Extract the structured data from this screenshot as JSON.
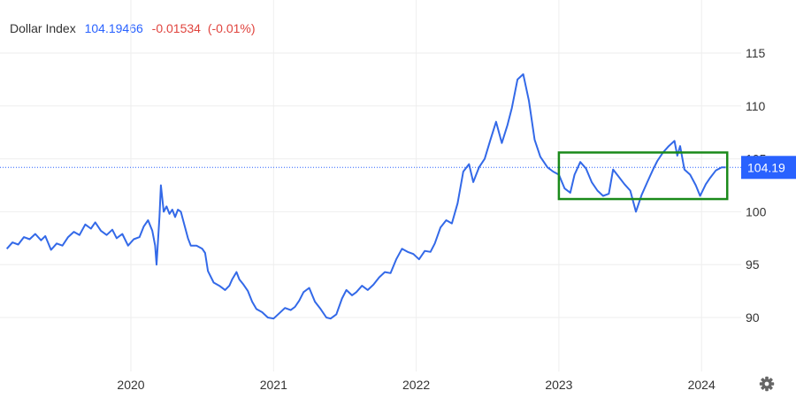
{
  "header": {
    "name": "Dollar Index",
    "price": "104.19466",
    "change": "-0.01534",
    "change_pct": "(-0.01%)"
  },
  "colors": {
    "line": "#3369e8",
    "price_tag_bg": "#2962ff",
    "price_line": "#2962ff",
    "negative": "#e0443e",
    "highlight_box": "#1a8a1a",
    "grid": "#eeeeee",
    "axis_text": "#333333"
  },
  "icons": {
    "settings": "gear-icon"
  },
  "chart_data": {
    "type": "line",
    "title": "Dollar Index",
    "xlabel": "",
    "ylabel": "",
    "x_ticks": [
      "2020",
      "2021",
      "2022",
      "2023",
      "2024"
    ],
    "y_ticks": [
      90,
      95,
      100,
      105,
      110,
      115
    ],
    "ylim": [
      84.6,
      119.7
    ],
    "xlim": [
      2019.13,
      2024.25
    ],
    "grid": true,
    "last_price_label": "104.19",
    "last_price_value": 104.19,
    "highlight_range": {
      "x": [
        2023.0,
        2024.18
      ],
      "y": [
        101.2,
        105.6
      ]
    },
    "series": [
      {
        "values": [
          [
            2019.13,
            96.5
          ],
          [
            2019.17,
            97.1
          ],
          [
            2019.21,
            96.9
          ],
          [
            2019.25,
            97.6
          ],
          [
            2019.29,
            97.4
          ],
          [
            2019.33,
            97.9
          ],
          [
            2019.37,
            97.3
          ],
          [
            2019.4,
            97.7
          ],
          [
            2019.44,
            96.4
          ],
          [
            2019.48,
            97.0
          ],
          [
            2019.52,
            96.8
          ],
          [
            2019.56,
            97.6
          ],
          [
            2019.6,
            98.1
          ],
          [
            2019.64,
            97.8
          ],
          [
            2019.68,
            98.8
          ],
          [
            2019.72,
            98.4
          ],
          [
            2019.75,
            99.0
          ],
          [
            2019.79,
            98.2
          ],
          [
            2019.83,
            97.8
          ],
          [
            2019.87,
            98.3
          ],
          [
            2019.9,
            97.5
          ],
          [
            2019.94,
            97.9
          ],
          [
            2019.98,
            96.8
          ],
          [
            2020.02,
            97.4
          ],
          [
            2020.06,
            97.6
          ],
          [
            2020.09,
            98.6
          ],
          [
            2020.12,
            99.2
          ],
          [
            2020.15,
            98.2
          ],
          [
            2020.17,
            96.8
          ],
          [
            2020.18,
            95.0
          ],
          [
            2020.2,
            99.5
          ],
          [
            2020.21,
            102.5
          ],
          [
            2020.23,
            100.0
          ],
          [
            2020.25,
            100.5
          ],
          [
            2020.27,
            99.8
          ],
          [
            2020.29,
            100.2
          ],
          [
            2020.31,
            99.5
          ],
          [
            2020.33,
            100.2
          ],
          [
            2020.35,
            100.0
          ],
          [
            2020.37,
            99.0
          ],
          [
            2020.4,
            97.5
          ],
          [
            2020.42,
            96.8
          ],
          [
            2020.46,
            96.8
          ],
          [
            2020.5,
            96.5
          ],
          [
            2020.52,
            96.1
          ],
          [
            2020.54,
            94.4
          ],
          [
            2020.58,
            93.3
          ],
          [
            2020.62,
            93.0
          ],
          [
            2020.66,
            92.6
          ],
          [
            2020.69,
            93.0
          ],
          [
            2020.71,
            93.6
          ],
          [
            2020.74,
            94.3
          ],
          [
            2020.76,
            93.6
          ],
          [
            2020.79,
            93.1
          ],
          [
            2020.82,
            92.5
          ],
          [
            2020.85,
            91.5
          ],
          [
            2020.88,
            90.8
          ],
          [
            2020.92,
            90.5
          ],
          [
            2020.96,
            90.0
          ],
          [
            2021.0,
            89.9
          ],
          [
            2021.04,
            90.4
          ],
          [
            2021.08,
            90.9
          ],
          [
            2021.12,
            90.7
          ],
          [
            2021.15,
            91.0
          ],
          [
            2021.18,
            91.6
          ],
          [
            2021.21,
            92.4
          ],
          [
            2021.25,
            92.8
          ],
          [
            2021.29,
            91.5
          ],
          [
            2021.33,
            90.8
          ],
          [
            2021.37,
            90.0
          ],
          [
            2021.4,
            89.9
          ],
          [
            2021.44,
            90.3
          ],
          [
            2021.48,
            91.8
          ],
          [
            2021.51,
            92.6
          ],
          [
            2021.55,
            92.1
          ],
          [
            2021.58,
            92.4
          ],
          [
            2021.62,
            93.0
          ],
          [
            2021.66,
            92.6
          ],
          [
            2021.7,
            93.1
          ],
          [
            2021.74,
            93.8
          ],
          [
            2021.78,
            94.3
          ],
          [
            2021.82,
            94.2
          ],
          [
            2021.86,
            95.5
          ],
          [
            2021.9,
            96.5
          ],
          [
            2021.94,
            96.2
          ],
          [
            2021.98,
            96.0
          ],
          [
            2022.02,
            95.5
          ],
          [
            2022.06,
            96.3
          ],
          [
            2022.1,
            96.2
          ],
          [
            2022.13,
            97.0
          ],
          [
            2022.17,
            98.5
          ],
          [
            2022.21,
            99.2
          ],
          [
            2022.25,
            98.9
          ],
          [
            2022.29,
            100.8
          ],
          [
            2022.33,
            103.8
          ],
          [
            2022.37,
            104.5
          ],
          [
            2022.4,
            102.8
          ],
          [
            2022.44,
            104.2
          ],
          [
            2022.48,
            105.0
          ],
          [
            2022.52,
            106.8
          ],
          [
            2022.56,
            108.5
          ],
          [
            2022.6,
            106.5
          ],
          [
            2022.64,
            108.2
          ],
          [
            2022.67,
            109.8
          ],
          [
            2022.71,
            112.5
          ],
          [
            2022.75,
            113.0
          ],
          [
            2022.79,
            110.5
          ],
          [
            2022.83,
            106.8
          ],
          [
            2022.87,
            105.2
          ],
          [
            2022.92,
            104.2
          ],
          [
            2022.96,
            103.8
          ],
          [
            2023.0,
            103.5
          ],
          [
            2023.04,
            102.2
          ],
          [
            2023.08,
            101.8
          ],
          [
            2023.11,
            103.5
          ],
          [
            2023.15,
            104.7
          ],
          [
            2023.19,
            104.1
          ],
          [
            2023.23,
            102.8
          ],
          [
            2023.27,
            102.0
          ],
          [
            2023.31,
            101.5
          ],
          [
            2023.35,
            101.7
          ],
          [
            2023.38,
            104.0
          ],
          [
            2023.42,
            103.3
          ],
          [
            2023.46,
            102.6
          ],
          [
            2023.5,
            102.0
          ],
          [
            2023.54,
            100.0
          ],
          [
            2023.58,
            101.6
          ],
          [
            2023.62,
            102.8
          ],
          [
            2023.66,
            104.0
          ],
          [
            2023.69,
            104.8
          ],
          [
            2023.73,
            105.6
          ],
          [
            2023.77,
            106.2
          ],
          [
            2023.81,
            106.7
          ],
          [
            2023.83,
            105.3
          ],
          [
            2023.85,
            106.2
          ],
          [
            2023.88,
            104.0
          ],
          [
            2023.92,
            103.5
          ],
          [
            2023.96,
            102.5
          ],
          [
            2023.99,
            101.5
          ],
          [
            2024.03,
            102.6
          ],
          [
            2024.06,
            103.2
          ],
          [
            2024.1,
            103.9
          ],
          [
            2024.14,
            104.2
          ],
          [
            2024.17,
            104.19
          ]
        ]
      }
    ]
  }
}
